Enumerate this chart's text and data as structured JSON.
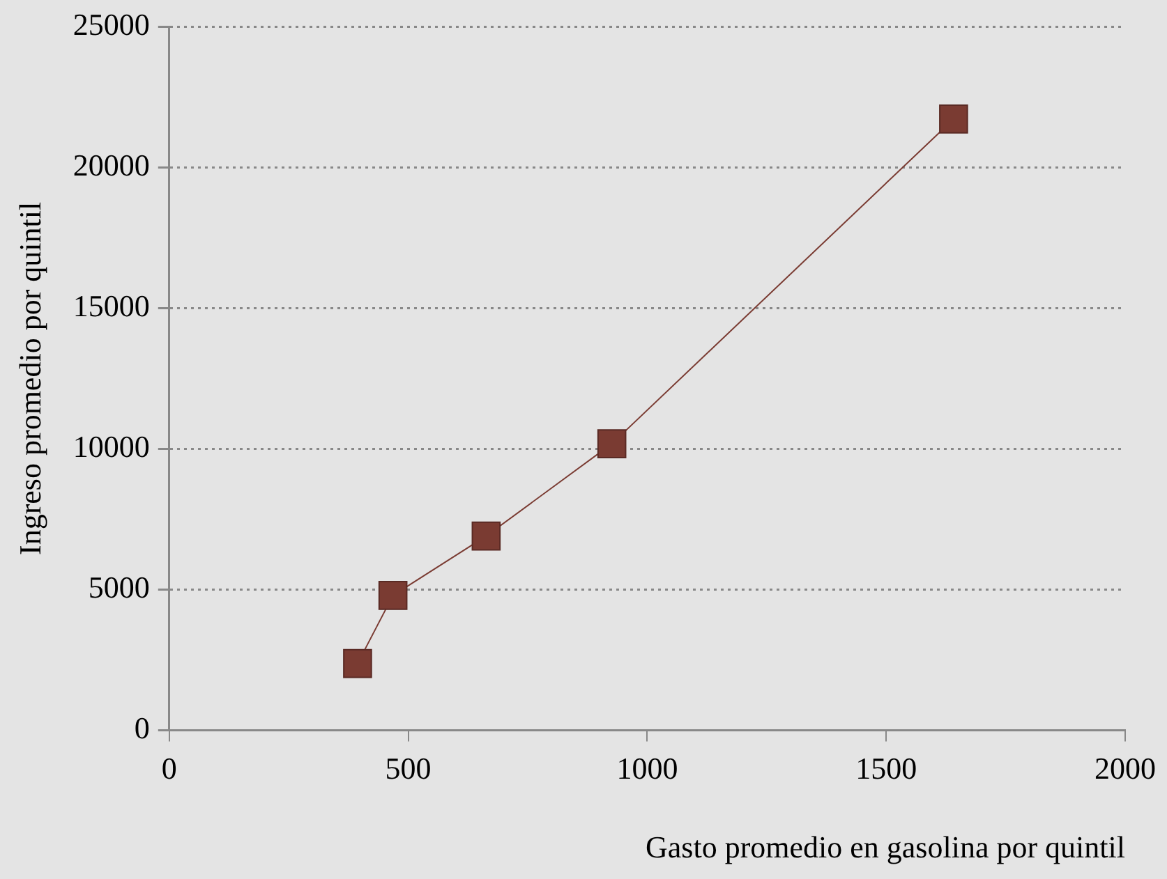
{
  "chart_data": {
    "type": "line",
    "xlabel": "Gasto promedio en gasolina por quintil",
    "ylabel": "Ingreso promedio por quintil",
    "x": [
      394,
      468,
      663,
      926,
      1641
    ],
    "series": [
      {
        "color": "#7a3b32",
        "values": [
          2370,
          4790,
          6900,
          10180,
          21720
        ]
      }
    ],
    "xlim": [
      0,
      2000
    ],
    "xticks": [
      0,
      500,
      1000,
      1500,
      2000
    ],
    "ylim": [
      0,
      25000
    ],
    "yticks": [
      0,
      5000,
      10000,
      15000,
      20000,
      25000
    ],
    "grid": "y",
    "legend": false,
    "marker": "square",
    "line_style": "solid"
  }
}
